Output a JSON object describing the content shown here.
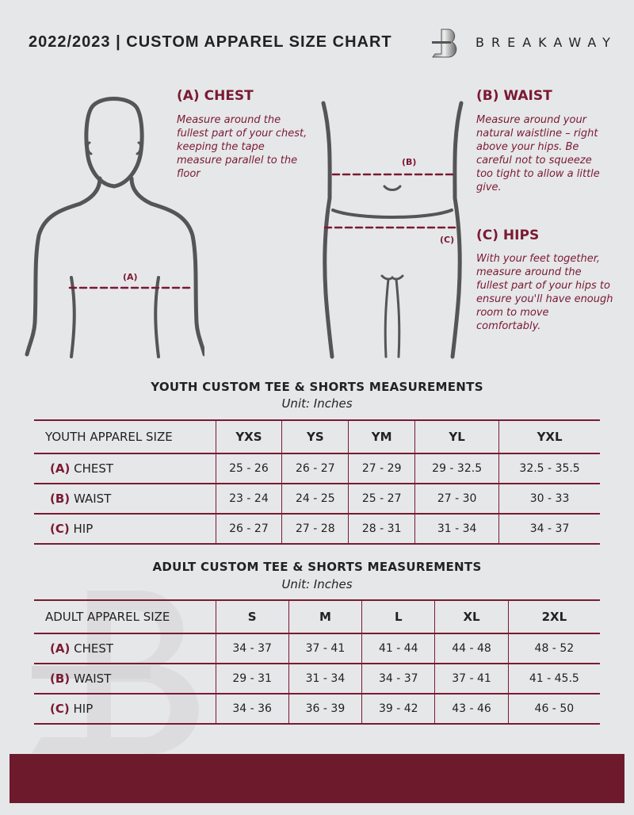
{
  "header": {
    "title": "2022/2023  |  CUSTOM APPAREL SIZE CHART",
    "brand": "BREAKAWAY",
    "logo_letter": "B"
  },
  "guide": {
    "chest": {
      "heading": "(A) CHEST",
      "text": "Measure around the fullest part of your chest, keeping the tape measure parallel to the floor",
      "marker": "(A)"
    },
    "waist": {
      "heading": "(B) WAIST",
      "text": "Measure around your natural waistline – right above your hips. Be careful not to squeeze too tight to allow a little give.",
      "marker": "(B)"
    },
    "hips": {
      "heading": "(C) HIPS",
      "text": "With your feet together, measure around the fullest part of your hips to ensure you'll have enough room to move comfortably.",
      "marker": "(C)"
    }
  },
  "youth": {
    "title": "YOUTH CUSTOM TEE & SHORTS MEASUREMENTS",
    "unit": "Unit: Inches",
    "header": [
      "YOUTH APPAREL SIZE",
      "YXS",
      "YS",
      "YM",
      "YL",
      "YXL"
    ],
    "rows": [
      {
        "letter": "(A)",
        "label": "CHEST",
        "values": [
          "25 - 26",
          "26 - 27",
          "27 - 29",
          "29 - 32.5",
          "32.5 - 35.5"
        ]
      },
      {
        "letter": "(B)",
        "label": "WAIST",
        "values": [
          "23 - 24",
          "24 - 25",
          "25 - 27",
          "27 - 30",
          "30 - 33"
        ]
      },
      {
        "letter": "(C)",
        "label": "HIP",
        "values": [
          "26 - 27",
          "27 - 28",
          "28 - 31",
          "31 - 34",
          "34 - 37"
        ]
      }
    ]
  },
  "adult": {
    "title": "ADULT CUSTOM TEE & SHORTS MEASUREMENTS",
    "unit": "Unit: Inches",
    "header": [
      "ADULT APPAREL SIZE",
      "S",
      "M",
      "L",
      "XL",
      "2XL"
    ],
    "rows": [
      {
        "letter": "(A)",
        "label": "CHEST",
        "values": [
          "34 - 37",
          "37 - 41",
          "41 - 44",
          "44 - 48",
          "48 - 52"
        ]
      },
      {
        "letter": "(B)",
        "label": "WAIST",
        "values": [
          "29 - 31",
          "31 - 34",
          "34 - 37",
          "37 - 41",
          "41 - 45.5"
        ]
      },
      {
        "letter": "(C)",
        "label": "HIP",
        "values": [
          "34 - 36",
          "36 - 39",
          "39 - 42",
          "43 - 46",
          "46 - 50"
        ]
      }
    ]
  },
  "colors": {
    "accent": "#7a1a32",
    "background": "#e6e7e9",
    "footer": "#6e1a2d"
  }
}
